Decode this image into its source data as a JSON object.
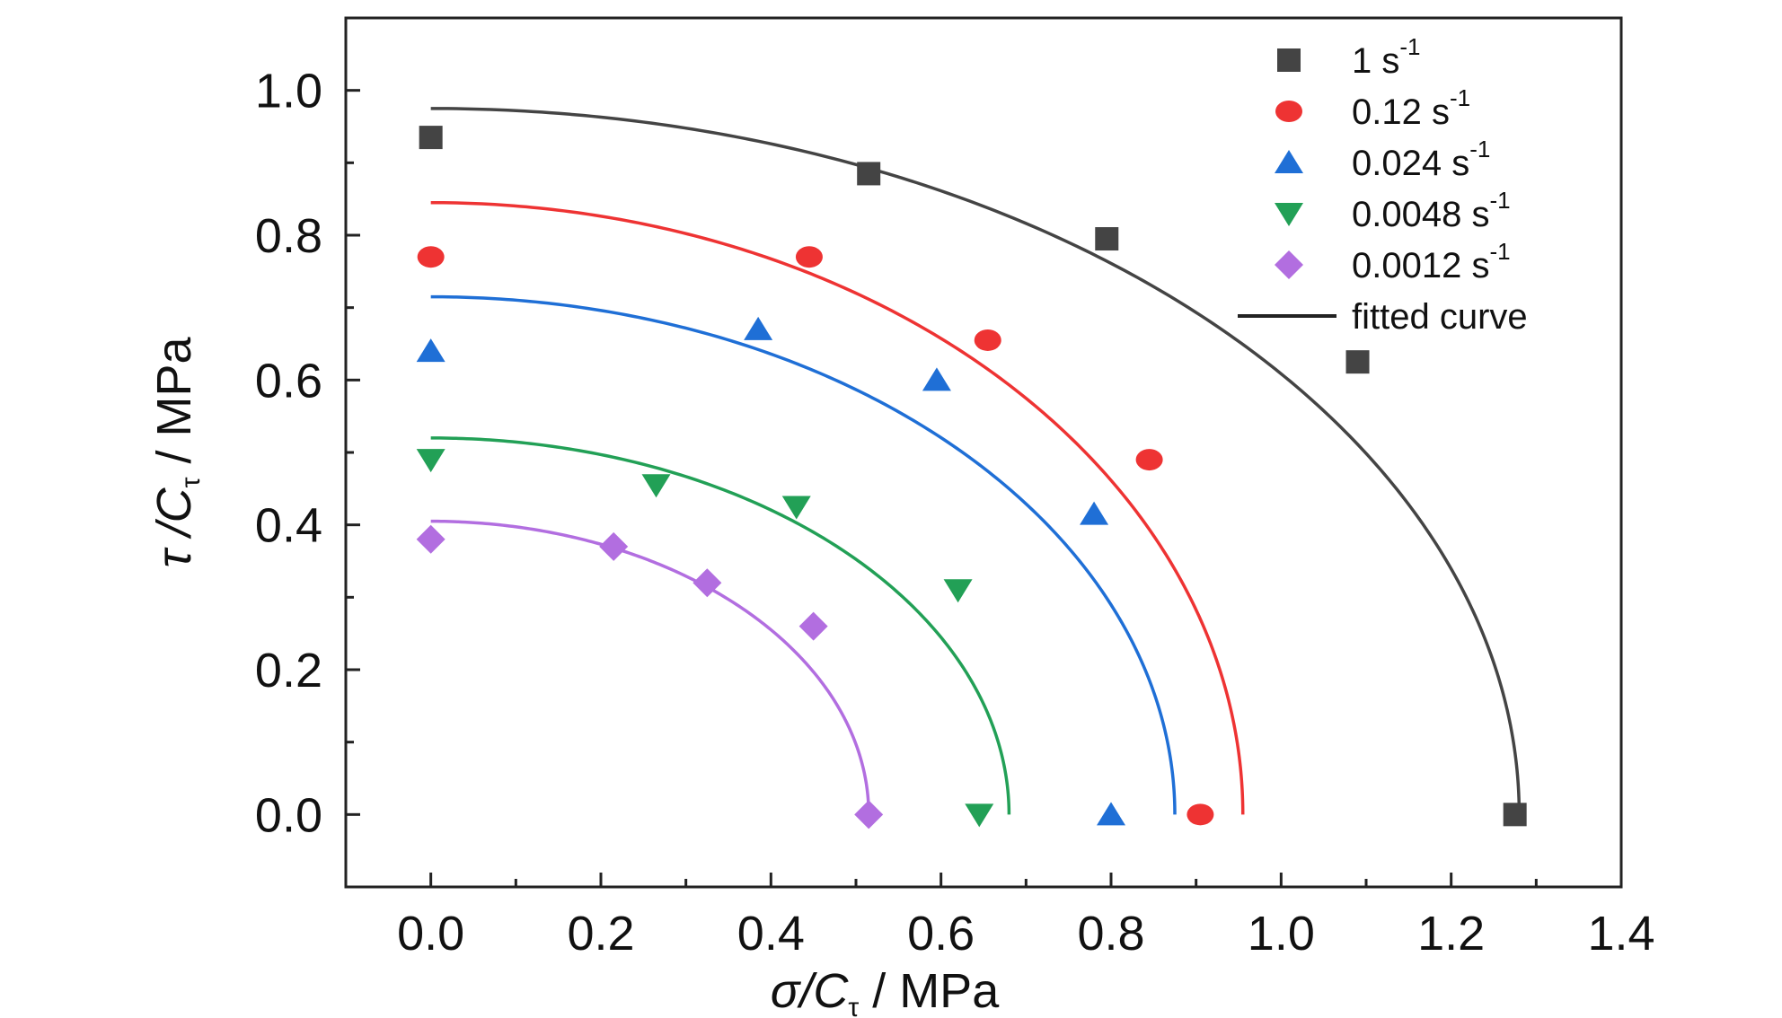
{
  "chart_data": {
    "type": "scatter",
    "xlabel": {
      "main": "σ/C",
      "sub": "τ",
      "unit": " / MPa"
    },
    "ylabel": {
      "main": "τ /C",
      "sub": "τ",
      "unit": " / MPa"
    },
    "xlim": [
      -0.1,
      1.4
    ],
    "ylim": [
      -0.1,
      1.1
    ],
    "xticks": [
      0.0,
      0.2,
      0.4,
      0.6,
      0.8,
      1.0,
      1.2,
      1.4
    ],
    "yticks": [
      0.0,
      0.2,
      0.4,
      0.6,
      0.8,
      1.0
    ],
    "xtick_labels": [
      "0.0",
      "0.2",
      "0.4",
      "0.6",
      "0.8",
      "1.0",
      "1.2",
      "1.4"
    ],
    "ytick_labels": [
      "0.0",
      "0.2",
      "0.4",
      "0.6",
      "0.8",
      "1.0"
    ],
    "legend_position": "top-right",
    "grid": false,
    "fitted_curve_label": "fitted curve",
    "series": [
      {
        "name": "1",
        "unit": "s",
        "exp": "-1",
        "color": "#444444",
        "marker": "square",
        "points": [
          [
            0.0,
            0.935
          ],
          [
            0.515,
            0.885
          ],
          [
            0.795,
            0.795
          ],
          [
            1.09,
            0.625
          ],
          [
            1.275,
            0.0
          ]
        ],
        "fit": {
          "a": 1.28,
          "b": 0.975
        }
      },
      {
        "name": "0.12",
        "unit": "s",
        "exp": "-1",
        "color": "#ee3333",
        "marker": "circle",
        "points": [
          [
            0.0,
            0.77
          ],
          [
            0.445,
            0.77
          ],
          [
            0.655,
            0.655
          ],
          [
            0.845,
            0.49
          ],
          [
            0.905,
            0.0
          ]
        ],
        "fit": {
          "a": 0.955,
          "b": 0.845
        }
      },
      {
        "name": "0.024",
        "unit": "s",
        "exp": "-1",
        "color": "#1f6fd6",
        "marker": "triangle-up",
        "points": [
          [
            0.0,
            0.64
          ],
          [
            0.385,
            0.67
          ],
          [
            0.595,
            0.6
          ],
          [
            0.78,
            0.415
          ],
          [
            0.8,
            0.0
          ]
        ],
        "fit": {
          "a": 0.875,
          "b": 0.715
        }
      },
      {
        "name": "0.0048",
        "unit": "s",
        "exp": "-1",
        "color": "#22a056",
        "marker": "triangle-down",
        "points": [
          [
            0.0,
            0.49
          ],
          [
            0.265,
            0.455
          ],
          [
            0.43,
            0.425
          ],
          [
            0.62,
            0.31
          ],
          [
            0.645,
            0.0
          ]
        ],
        "fit": {
          "a": 0.68,
          "b": 0.52
        }
      },
      {
        "name": "0.0012",
        "unit": "s",
        "exp": "-1",
        "color": "#b26ee0",
        "marker": "diamond",
        "points": [
          [
            0.0,
            0.38
          ],
          [
            0.215,
            0.37
          ],
          [
            0.325,
            0.32
          ],
          [
            0.45,
            0.26
          ],
          [
            0.515,
            0.0
          ]
        ],
        "fit": {
          "a": 0.515,
          "b": 0.405
        }
      }
    ]
  }
}
